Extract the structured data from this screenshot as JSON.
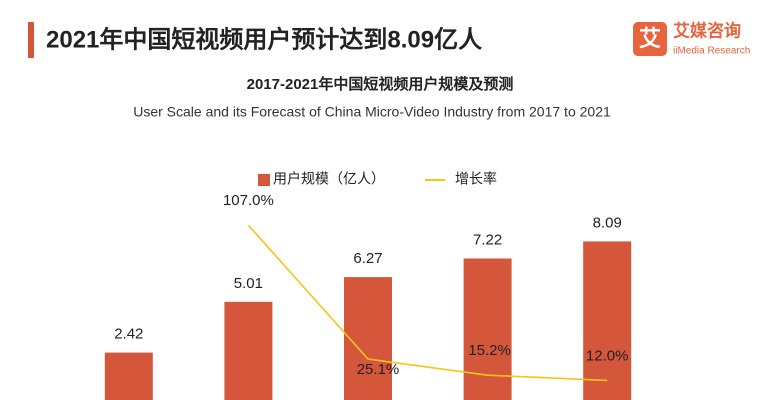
{
  "header": {
    "title": "2021年中国短视频用户预计达到8.09亿人",
    "logo_icon": "艾",
    "logo_name": "艾媒咨询",
    "logo_sub": "iiMedia Research"
  },
  "chart_data": {
    "type": "bar",
    "title": "2017-2021年中国短视频用户规模及预测",
    "subtitle": "User Scale and its Forecast of China Micro-Video Industry from 2017 to 2021",
    "categories": [
      null,
      null,
      null,
      null,
      null
    ],
    "series": [
      {
        "name": "用户规模（亿人）",
        "color": "#d4573b",
        "values": [
          2.42,
          5.01,
          6.27,
          7.22,
          8.09
        ]
      },
      {
        "name": "增长率",
        "color": "#f5c518",
        "type": "line",
        "axis": "y2",
        "values": [
          null,
          107.0,
          25.1,
          15.2,
          12.0
        ],
        "value_labels": [
          null,
          "107.0%",
          "25.1%",
          "15.2%",
          "12.0%"
        ]
      }
    ],
    "ylim": [
      0,
      10
    ],
    "y2lim": [
      0,
      120
    ],
    "grid": false
  }
}
